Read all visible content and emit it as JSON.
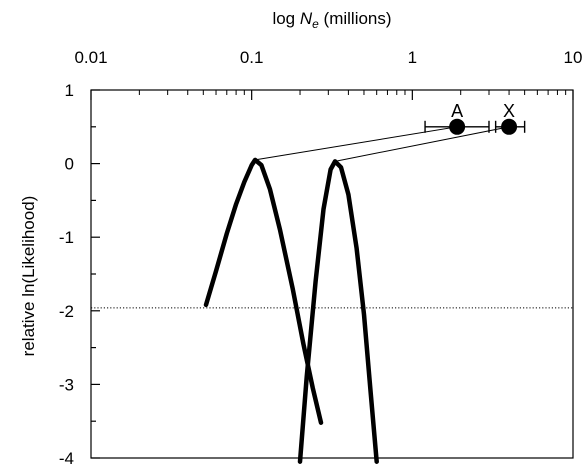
{
  "chart_data": {
    "type": "line",
    "xlabel_parts": [
      "log ",
      "N",
      "e",
      " (millions)"
    ],
    "ylabel": "relative ln(Likelihood)",
    "xscale": "log",
    "xlim": [
      0.01,
      10
    ],
    "ylim": [
      -4,
      1
    ],
    "xticks": [
      {
        "value": 0.01,
        "label": "0.01"
      },
      {
        "value": 0.1,
        "label": "0.1"
      },
      {
        "value": 1,
        "label": "1"
      },
      {
        "value": 10,
        "label": "10"
      }
    ],
    "yticks": [
      {
        "value": 1,
        "label": "1"
      },
      {
        "value": 0,
        "label": "0"
      },
      {
        "value": -1,
        "label": "-1"
      },
      {
        "value": -2,
        "label": "-2"
      },
      {
        "value": -3,
        "label": "-3"
      },
      {
        "value": -4,
        "label": "-4"
      }
    ],
    "threshold_line": -1.96,
    "series": [
      {
        "name": "A",
        "peak": {
          "x": 0.105,
          "y": 0.05
        },
        "curve": [
          [
            0.052,
            -1.92
          ],
          [
            0.06,
            -1.46
          ],
          [
            0.07,
            -0.95
          ],
          [
            0.08,
            -0.55
          ],
          [
            0.09,
            -0.25
          ],
          [
            0.1,
            -0.02
          ],
          [
            0.105,
            0.05
          ],
          [
            0.115,
            -0.02
          ],
          [
            0.13,
            -0.35
          ],
          [
            0.15,
            -0.9
          ],
          [
            0.18,
            -1.7
          ],
          [
            0.21,
            -2.45
          ],
          [
            0.24,
            -3.05
          ],
          [
            0.27,
            -3.52
          ]
        ],
        "estimate": {
          "x": 1.9,
          "y": 0.5,
          "low": 1.2,
          "high": 3.0,
          "label": "A"
        }
      },
      {
        "name": "X",
        "peak": {
          "x": 0.33,
          "y": 0.03
        },
        "curve": [
          [
            0.2,
            -4.05
          ],
          [
            0.22,
            -2.9
          ],
          [
            0.25,
            -1.6
          ],
          [
            0.28,
            -0.62
          ],
          [
            0.31,
            -0.08
          ],
          [
            0.33,
            0.03
          ],
          [
            0.36,
            -0.05
          ],
          [
            0.4,
            -0.42
          ],
          [
            0.45,
            -1.15
          ],
          [
            0.5,
            -2.05
          ],
          [
            0.55,
            -3.1
          ],
          [
            0.6,
            -4.05
          ]
        ],
        "estimate": {
          "x": 4.0,
          "y": 0.5,
          "low": 3.3,
          "high": 5.0,
          "label": "X"
        }
      }
    ]
  }
}
